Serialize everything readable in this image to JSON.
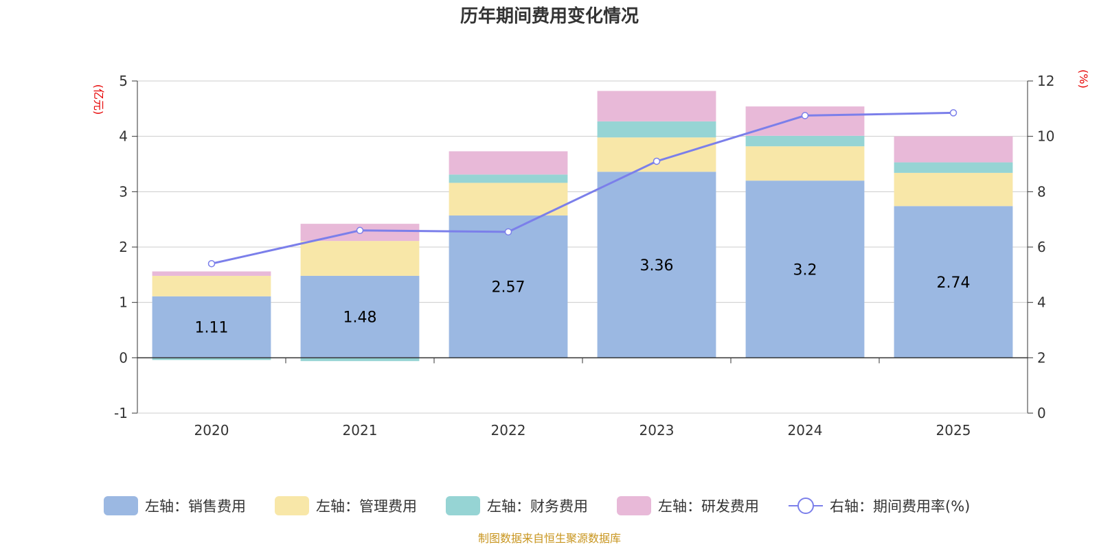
{
  "chart_data": {
    "type": "bar",
    "stacked": true,
    "title": "历年期间费用变化情况",
    "categories": [
      "2020",
      "2021",
      "2022",
      "2023",
      "2024",
      "2025"
    ],
    "left_axis": {
      "unit": "(亿元)",
      "ylim": [
        -1,
        5
      ],
      "ticks": [
        -1,
        0,
        1,
        2,
        3,
        4,
        5
      ]
    },
    "right_axis": {
      "unit": "(%)",
      "ylim": [
        0,
        12
      ],
      "ticks": [
        0,
        2,
        4,
        6,
        8,
        10,
        12
      ]
    },
    "series": [
      {
        "name": "左轴：销售费用",
        "axis": "left",
        "type": "bar",
        "color": "#9bb8e2",
        "values": [
          1.11,
          1.48,
          2.57,
          3.36,
          3.2,
          2.74
        ],
        "labels": [
          "1.11",
          "1.48",
          "2.57",
          "3.36",
          "3.2",
          "2.74"
        ]
      },
      {
        "name": "左轴：管理费用",
        "axis": "left",
        "type": "bar",
        "color": "#f8e7a8",
        "values": [
          0.37,
          0.63,
          0.59,
          0.62,
          0.62,
          0.6
        ]
      },
      {
        "name": "左轴：财务费用",
        "axis": "left",
        "type": "bar",
        "color": "#96d4d4",
        "values": [
          -0.04,
          -0.06,
          0.15,
          0.29,
          0.19,
          0.19
        ]
      },
      {
        "name": "左轴：研发费用",
        "axis": "left",
        "type": "bar",
        "color": "#e8b9d8",
        "values": [
          0.08,
          0.31,
          0.42,
          0.55,
          0.53,
          0.47
        ]
      },
      {
        "name": "右轴：期间费用率(%)",
        "axis": "right",
        "type": "line",
        "color": "#7b7fea",
        "values": [
          5.4,
          6.6,
          6.55,
          9.1,
          10.75,
          10.85
        ]
      }
    ],
    "legend_position": "bottom",
    "grid": true
  },
  "source_note": "制图数据来自恒生聚源数据库"
}
